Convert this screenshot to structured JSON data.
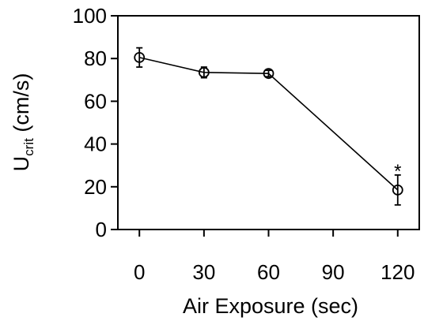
{
  "chart_data": {
    "type": "line",
    "title": "",
    "xlabel": "Air Exposure (sec)",
    "ylabel_main": "U",
    "ylabel_sub": "crit",
    "ylabel_units": " (cm/s)",
    "xlim": [
      -10,
      130
    ],
    "ylim": [
      0,
      100
    ],
    "x_ticks": [
      0,
      30,
      60,
      90,
      120
    ],
    "y_ticks": [
      0,
      20,
      40,
      60,
      80,
      100
    ],
    "grid": false,
    "series": [
      {
        "x": [
          0,
          30,
          60,
          120
        ],
        "y": [
          80.5,
          73.5,
          73,
          18.5
        ],
        "error": [
          4.5,
          2.5,
          1.5,
          7
        ],
        "marker": "open-circle",
        "color": "#000000"
      }
    ],
    "annotations": [
      {
        "text": "*",
        "x": 120,
        "y": 28
      }
    ]
  }
}
